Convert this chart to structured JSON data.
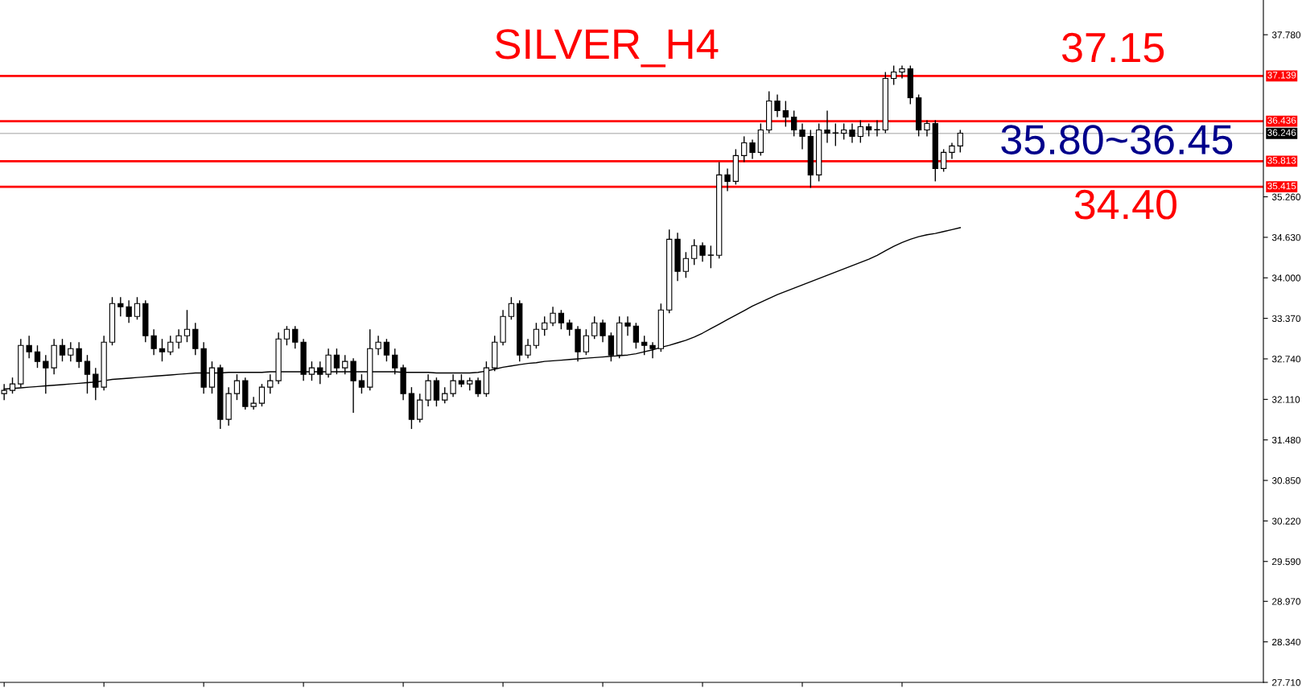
{
  "chart_data": {
    "type": "candlestick",
    "title": "SILVER_H4",
    "categories": [
      null,
      null,
      null,
      null,
      null,
      null,
      null,
      null,
      null,
      null,
      null,
      null,
      null,
      null,
      null,
      null,
      null,
      null,
      null,
      null,
      null,
      null,
      null,
      null,
      null,
      null,
      null,
      null,
      null,
      null,
      null,
      null,
      null,
      null,
      null,
      null,
      null,
      null,
      null,
      null,
      null,
      null,
      null,
      null,
      null,
      null,
      null,
      null,
      null,
      null,
      null,
      null,
      null,
      null,
      null,
      null,
      null,
      null,
      null,
      null,
      null,
      null,
      null,
      null,
      null,
      null,
      null,
      null,
      null,
      null,
      null,
      null,
      null,
      null,
      null,
      null,
      null,
      null,
      null,
      null,
      null,
      null,
      null,
      null,
      null,
      null,
      null,
      null,
      null,
      null,
      null,
      null,
      null,
      null,
      null,
      null,
      null,
      null,
      null,
      null,
      null,
      null,
      null,
      null,
      null,
      null,
      null,
      null,
      null,
      null,
      null,
      null,
      null,
      null,
      null,
      null
    ],
    "ohlc": [
      [
        32.2,
        32.35,
        32.1,
        32.25
      ],
      [
        32.25,
        32.45,
        32.2,
        32.35
      ],
      [
        32.35,
        33.05,
        32.3,
        32.95
      ],
      [
        32.95,
        33.1,
        32.75,
        32.85
      ],
      [
        32.85,
        32.95,
        32.6,
        32.7
      ],
      [
        32.7,
        32.8,
        32.2,
        32.6
      ],
      [
        32.6,
        33.05,
        32.5,
        32.95
      ],
      [
        32.95,
        33.05,
        32.7,
        32.8
      ],
      [
        32.8,
        33.0,
        32.7,
        32.9
      ],
      [
        32.9,
        33.0,
        32.6,
        32.7
      ],
      [
        32.7,
        32.8,
        32.2,
        32.5
      ],
      [
        32.5,
        32.6,
        32.1,
        32.3
      ],
      [
        32.3,
        33.1,
        32.25,
        33.0
      ],
      [
        33.0,
        33.7,
        32.95,
        33.6
      ],
      [
        33.6,
        33.7,
        33.4,
        33.55
      ],
      [
        33.55,
        33.65,
        33.3,
        33.4
      ],
      [
        33.4,
        33.7,
        33.35,
        33.6
      ],
      [
        33.6,
        33.65,
        33.0,
        33.1
      ],
      [
        33.1,
        33.2,
        32.8,
        32.9
      ],
      [
        32.9,
        33.05,
        32.7,
        32.85
      ],
      [
        32.85,
        33.1,
        32.8,
        33.0
      ],
      [
        33.0,
        33.2,
        32.9,
        33.1
      ],
      [
        33.1,
        33.5,
        33.0,
        33.2
      ],
      [
        33.2,
        33.3,
        32.8,
        32.9
      ],
      [
        32.9,
        33.0,
        32.2,
        32.3
      ],
      [
        32.3,
        32.7,
        32.2,
        32.6
      ],
      [
        32.6,
        32.65,
        31.65,
        31.8
      ],
      [
        31.8,
        32.3,
        31.7,
        32.2
      ],
      [
        32.2,
        32.5,
        32.1,
        32.4
      ],
      [
        32.4,
        32.45,
        31.95,
        32.0
      ],
      [
        32.0,
        32.15,
        31.95,
        32.05
      ],
      [
        32.05,
        32.35,
        32.0,
        32.3
      ],
      [
        32.3,
        32.5,
        32.2,
        32.4
      ],
      [
        32.4,
        33.15,
        32.35,
        33.05
      ],
      [
        33.05,
        33.25,
        32.95,
        33.2
      ],
      [
        33.2,
        33.25,
        32.9,
        33.0
      ],
      [
        33.0,
        33.05,
        32.4,
        32.5
      ],
      [
        32.5,
        32.7,
        32.4,
        32.6
      ],
      [
        32.6,
        32.7,
        32.35,
        32.5
      ],
      [
        32.5,
        32.9,
        32.45,
        32.8
      ],
      [
        32.8,
        32.9,
        32.5,
        32.6
      ],
      [
        32.6,
        32.8,
        32.5,
        32.7
      ],
      [
        32.7,
        32.75,
        31.9,
        32.4
      ],
      [
        32.4,
        32.5,
        32.2,
        32.3
      ],
      [
        32.3,
        33.2,
        32.25,
        32.9
      ],
      [
        32.9,
        33.1,
        32.8,
        33.0
      ],
      [
        33.0,
        33.05,
        32.7,
        32.8
      ],
      [
        32.8,
        32.9,
        32.5,
        32.6
      ],
      [
        32.6,
        32.65,
        32.1,
        32.2
      ],
      [
        32.2,
        32.3,
        31.65,
        31.8
      ],
      [
        31.8,
        32.2,
        31.75,
        32.1
      ],
      [
        32.1,
        32.5,
        32.0,
        32.4
      ],
      [
        32.4,
        32.45,
        32.0,
        32.1
      ],
      [
        32.1,
        32.3,
        32.05,
        32.2
      ],
      [
        32.2,
        32.5,
        32.15,
        32.4
      ],
      [
        32.4,
        32.5,
        32.3,
        32.35
      ],
      [
        32.35,
        32.45,
        32.25,
        32.4
      ],
      [
        32.4,
        32.45,
        32.15,
        32.2
      ],
      [
        32.2,
        32.7,
        32.15,
        32.6
      ],
      [
        32.6,
        33.1,
        32.55,
        33.0
      ],
      [
        33.0,
        33.5,
        32.95,
        33.4
      ],
      [
        33.4,
        33.7,
        33.35,
        33.6
      ],
      [
        33.6,
        33.65,
        32.7,
        32.8
      ],
      [
        32.8,
        33.05,
        32.75,
        32.95
      ],
      [
        32.95,
        33.3,
        32.9,
        33.2
      ],
      [
        33.2,
        33.4,
        33.1,
        33.3
      ],
      [
        33.3,
        33.55,
        33.25,
        33.45
      ],
      [
        33.45,
        33.5,
        33.2,
        33.3
      ],
      [
        33.3,
        33.35,
        33.1,
        33.2
      ],
      [
        33.2,
        33.25,
        32.7,
        32.85
      ],
      [
        32.85,
        33.2,
        32.8,
        33.1
      ],
      [
        33.1,
        33.4,
        33.05,
        33.3
      ],
      [
        33.3,
        33.35,
        33.0,
        33.1
      ],
      [
        33.1,
        33.15,
        32.7,
        32.8
      ],
      [
        32.8,
        33.4,
        32.75,
        33.3
      ],
      [
        33.3,
        33.4,
        33.1,
        33.25
      ],
      [
        33.25,
        33.3,
        32.9,
        33.0
      ],
      [
        33.0,
        33.1,
        32.8,
        32.95
      ],
      [
        32.95,
        33.0,
        32.75,
        32.9
      ],
      [
        32.9,
        33.6,
        32.85,
        33.5
      ],
      [
        33.5,
        34.75,
        33.45,
        34.6
      ],
      [
        34.6,
        34.7,
        33.95,
        34.1
      ],
      [
        34.1,
        34.4,
        34.0,
        34.3
      ],
      [
        34.3,
        34.6,
        34.2,
        34.5
      ],
      [
        34.5,
        34.55,
        34.25,
        34.35
      ],
      [
        34.35,
        34.5,
        34.15,
        34.35
      ],
      [
        34.35,
        35.8,
        34.3,
        35.6
      ],
      [
        35.6,
        35.7,
        35.35,
        35.5
      ],
      [
        35.5,
        36.0,
        35.45,
        35.9
      ],
      [
        35.9,
        36.2,
        35.8,
        36.1
      ],
      [
        36.1,
        36.15,
        35.85,
        35.95
      ],
      [
        35.95,
        36.4,
        35.9,
        36.3
      ],
      [
        36.3,
        36.9,
        36.25,
        36.75
      ],
      [
        36.75,
        36.85,
        36.5,
        36.6
      ],
      [
        36.6,
        36.75,
        36.35,
        36.5
      ],
      [
        36.5,
        36.6,
        36.2,
        36.3
      ],
      [
        36.3,
        36.4,
        36.0,
        36.2
      ],
      [
        36.2,
        36.3,
        35.4,
        35.6
      ],
      [
        35.6,
        36.4,
        35.5,
        36.3
      ],
      [
        36.3,
        36.6,
        36.1,
        36.25
      ],
      [
        36.25,
        36.4,
        36.05,
        36.25
      ],
      [
        36.25,
        36.4,
        36.15,
        36.3
      ],
      [
        36.3,
        36.4,
        36.1,
        36.2
      ],
      [
        36.2,
        36.45,
        36.1,
        36.35
      ],
      [
        36.35,
        36.4,
        36.2,
        36.3
      ],
      [
        36.3,
        36.45,
        36.2,
        36.3
      ],
      [
        36.3,
        37.2,
        36.25,
        37.1
      ],
      [
        37.1,
        37.3,
        37.0,
        37.2
      ],
      [
        37.2,
        37.3,
        37.1,
        37.25
      ],
      [
        37.25,
        37.3,
        36.7,
        36.8
      ],
      [
        36.8,
        36.85,
        36.2,
        36.3
      ],
      [
        36.3,
        36.45,
        36.2,
        36.4
      ],
      [
        36.4,
        36.45,
        35.5,
        35.7
      ],
      [
        35.7,
        36.0,
        35.65,
        35.95
      ],
      [
        35.95,
        36.1,
        35.85,
        36.05
      ],
      [
        36.05,
        36.3,
        35.95,
        36.25
      ]
    ],
    "series": [
      {
        "type": "line",
        "color": "#000000",
        "values": [
          32.27,
          32.28,
          32.29,
          32.3,
          32.31,
          32.32,
          32.33,
          32.34,
          32.35,
          32.36,
          32.37,
          32.38,
          32.4,
          32.42,
          32.43,
          32.44,
          32.45,
          32.46,
          32.47,
          32.48,
          32.49,
          32.5,
          32.51,
          32.52,
          32.52,
          32.52,
          32.52,
          32.53,
          32.53,
          32.53,
          32.53,
          32.53,
          32.54,
          32.54,
          32.54,
          32.54,
          32.54,
          32.54,
          32.54,
          32.54,
          32.54,
          32.54,
          32.54,
          32.54,
          32.54,
          32.54,
          32.54,
          32.54,
          32.53,
          32.53,
          32.53,
          32.53,
          32.52,
          32.52,
          32.52,
          32.52,
          32.52,
          32.53,
          32.55,
          32.58,
          32.61,
          32.63,
          32.65,
          32.67,
          32.68,
          32.7,
          32.71,
          32.72,
          32.73,
          32.74,
          32.75,
          32.76,
          32.77,
          32.78,
          32.79,
          32.8,
          32.82,
          32.85,
          32.88,
          32.92,
          32.95,
          32.99,
          33.03,
          33.08,
          33.14,
          33.21,
          33.28,
          33.35,
          33.42,
          33.49,
          33.56,
          33.62,
          33.68,
          33.74,
          33.79,
          33.84,
          33.89,
          33.94,
          33.99,
          34.04,
          34.09,
          34.14,
          34.19,
          34.24,
          34.29,
          34.35,
          34.42,
          34.49,
          34.55,
          34.6,
          34.64,
          34.67,
          34.69,
          34.72,
          34.75,
          34.78
        ]
      }
    ],
    "ylim": [
      27.71,
      38.32
    ],
    "yticks": [
      {
        "value": 27.71,
        "label": "27.710"
      },
      {
        "value": 28.34,
        "label": "28.340"
      },
      {
        "value": 28.97,
        "label": "28.970"
      },
      {
        "value": 29.59,
        "label": "29.590"
      },
      {
        "value": 30.22,
        "label": "30.220"
      },
      {
        "value": 30.85,
        "label": "30.850"
      },
      {
        "value": 31.48,
        "label": "31.480"
      },
      {
        "value": 32.11,
        "label": "32.110"
      },
      {
        "value": 32.74,
        "label": "32.740"
      },
      {
        "value": 33.37,
        "label": "33.370"
      },
      {
        "value": 34.0,
        "label": "34.000"
      },
      {
        "value": 34.63,
        "label": "34.630"
      },
      {
        "value": 35.26,
        "label": "35.260"
      },
      {
        "value": 37.78,
        "label": "37.780"
      }
    ],
    "ref_lines": [
      {
        "axis": "y",
        "value": 37.139,
        "label": "37.139",
        "color": "#ff0000"
      },
      {
        "axis": "y",
        "value": 36.436,
        "label": "36.436",
        "color": "#ff0000"
      },
      {
        "axis": "y",
        "value": 36.246,
        "label": "36.246",
        "color": "#c0c0c0"
      },
      {
        "axis": "y",
        "value": 35.813,
        "label": "35.813",
        "color": "#ff0000"
      },
      {
        "axis": "y",
        "value": 35.415,
        "label": "35.415",
        "color": "#ff0000"
      }
    ],
    "annotations": [
      "37.15",
      "35.80~36.45",
      "34.40"
    ],
    "tick_labels": "y",
    "grid": false
  }
}
